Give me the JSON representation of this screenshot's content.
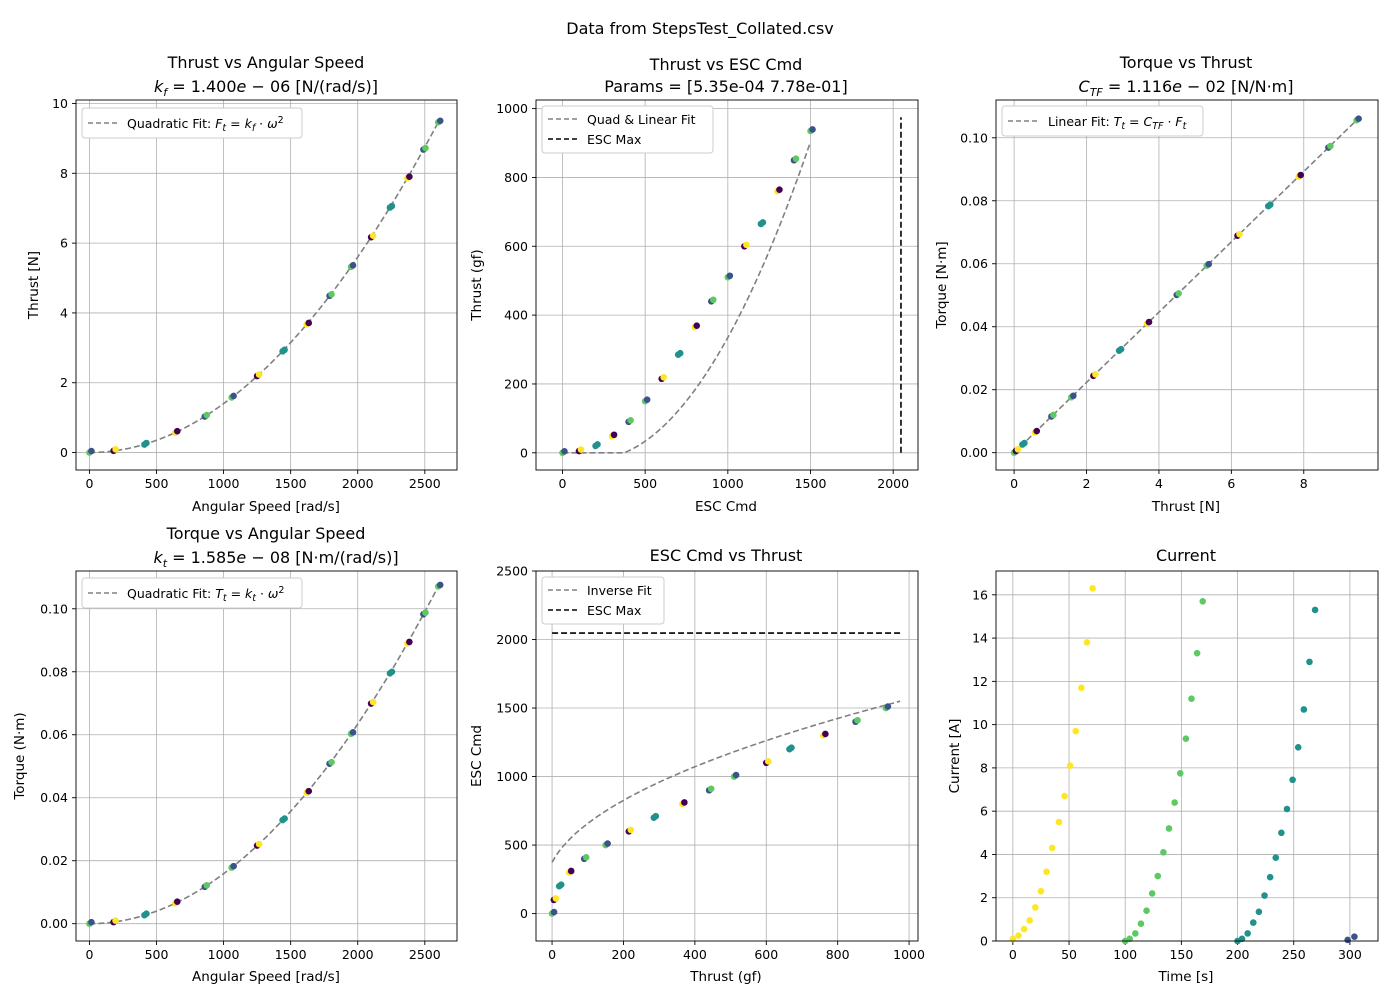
{
  "figure": {
    "suptitle": "Data from StepsTest_Collated.csv",
    "colors": {
      "fit": "#808080",
      "esc_max": "#000000",
      "grid": "#b0b0b0",
      "viridis": [
        "#440154",
        "#3b528b",
        "#21918c",
        "#5ec962",
        "#fde725"
      ]
    }
  },
  "chart_data": [
    {
      "type": "scatter",
      "title_main": "Thrust vs Angular Speed",
      "title_sub": "k_f = 1.400e−06 [N/(rad/s)]",
      "xlabel": "Angular Speed [rad/s]",
      "ylabel": "Thrust [N]",
      "xlim": [
        -100,
        2740
      ],
      "ylim": [
        -0.5,
        10.1
      ],
      "xticks": [
        0,
        500,
        1000,
        1500,
        2000,
        2500
      ],
      "yticks": [
        0,
        2,
        4,
        6,
        8,
        10
      ],
      "grid": true,
      "legend": {
        "location": "upper-left",
        "entries": [
          "Quadratic Fit: F_t = k_f · ω²"
        ]
      },
      "fit": {
        "kind": "quadratic",
        "k": 1.4e-06
      },
      "points": [
        [
          0,
          0
        ],
        [
          180,
          0.05
        ],
        [
          410,
          0.23
        ],
        [
          640,
          0.57
        ],
        [
          860,
          1.03
        ],
        [
          1060,
          1.58
        ],
        [
          1250,
          2.19
        ],
        [
          1440,
          2.9
        ],
        [
          1620,
          3.67
        ],
        [
          1790,
          4.49
        ],
        [
          1950,
          5.32
        ],
        [
          2100,
          6.17
        ],
        [
          2240,
          7.02
        ],
        [
          2370,
          7.86
        ],
        [
          2490,
          8.68
        ],
        [
          2600,
          9.46
        ]
      ]
    },
    {
      "type": "scatter",
      "title_main": "Thrust vs ESC Cmd",
      "title_sub": "Params = [5.35e-04 7.78e-01]",
      "xlabel": "ESC Cmd",
      "ylabel": "Thrust (gf)",
      "xlim": [
        -160,
        2150
      ],
      "ylim": [
        -50,
        1025
      ],
      "xticks": [
        0,
        500,
        1000,
        1500,
        2000
      ],
      "yticks": [
        0,
        200,
        400,
        600,
        800,
        1000
      ],
      "grid": true,
      "legend": {
        "location": "upper-left",
        "entries": [
          "Quad & Linear Fit",
          "ESC Max"
        ]
      },
      "fit": {
        "kind": "quad_linear",
        "a": 0.000535,
        "b": -0.2
      },
      "esc_max": {
        "value": 2047,
        "range": [
          0,
          975
        ]
      },
      "points": [
        [
          0,
          0
        ],
        [
          100,
          5
        ],
        [
          200,
          20
        ],
        [
          300,
          48
        ],
        [
          400,
          90
        ],
        [
          500,
          150
        ],
        [
          600,
          215
        ],
        [
          700,
          285
        ],
        [
          800,
          365
        ],
        [
          900,
          440
        ],
        [
          1000,
          510
        ],
        [
          1100,
          600
        ],
        [
          1200,
          665
        ],
        [
          1300,
          760
        ],
        [
          1400,
          850
        ],
        [
          1500,
          935
        ]
      ]
    },
    {
      "type": "scatter",
      "title_main": "Torque vs Thrust",
      "title_sub": "C_TF = 1.116e−02 [N/N·m]",
      "xlabel": "Thrust [N]",
      "ylabel": "Torque [N·m]",
      "xlim": [
        -0.5,
        10.05
      ],
      "ylim": [
        -0.0055,
        0.112
      ],
      "xticks": [
        0,
        2,
        4,
        6,
        8
      ],
      "yticks": [
        0,
        0.02,
        0.04,
        0.06,
        0.08,
        0.1
      ],
      "ytick_labels": [
        "0.00",
        "0.02",
        "0.04",
        "0.06",
        "0.08",
        "0.10"
      ],
      "grid": true,
      "legend": {
        "location": "upper-left",
        "entries": [
          "Linear Fit: T_t = C_TF · F_t"
        ]
      },
      "fit": {
        "kind": "linear",
        "k": 0.01116
      },
      "points": [
        [
          0,
          0
        ],
        [
          0.05,
          0.0006
        ],
        [
          0.23,
          0.0026
        ],
        [
          0.57,
          0.0064
        ],
        [
          1.03,
          0.0115
        ],
        [
          1.58,
          0.0176
        ],
        [
          2.19,
          0.0244
        ],
        [
          2.9,
          0.0324
        ],
        [
          3.67,
          0.041
        ],
        [
          4.49,
          0.0501
        ],
        [
          5.32,
          0.0594
        ],
        [
          6.17,
          0.0689
        ],
        [
          7.02,
          0.0783
        ],
        [
          7.86,
          0.0877
        ],
        [
          8.68,
          0.0969
        ],
        [
          9.46,
          0.1056
        ]
      ]
    },
    {
      "type": "scatter",
      "title_main": "Torque vs Angular Speed",
      "title_sub": "k_t = 1.585e−08 [N·m/(rad/s)]",
      "xlabel": "Angular Speed [rad/s]",
      "ylabel": "Torque (N·m)",
      "xlim": [
        -100,
        2740
      ],
      "ylim": [
        -0.0055,
        0.112
      ],
      "xticks": [
        0,
        500,
        1000,
        1500,
        2000,
        2500
      ],
      "yticks": [
        0,
        0.02,
        0.04,
        0.06,
        0.08,
        0.1
      ],
      "ytick_labels": [
        "0.00",
        "0.02",
        "0.04",
        "0.06",
        "0.08",
        "0.10"
      ],
      "grid": true,
      "legend": {
        "location": "upper-left",
        "entries": [
          "Quadratic Fit: T_t = k_t · ω²"
        ]
      },
      "fit": {
        "kind": "quadratic",
        "k": 1.585e-08
      },
      "points": [
        [
          0,
          0
        ],
        [
          180,
          0.0005
        ],
        [
          410,
          0.0027
        ],
        [
          640,
          0.0065
        ],
        [
          860,
          0.0117
        ],
        [
          1060,
          0.0178
        ],
        [
          1250,
          0.0248
        ],
        [
          1440,
          0.0329
        ],
        [
          1620,
          0.0416
        ],
        [
          1790,
          0.0508
        ],
        [
          1950,
          0.0603
        ],
        [
          2100,
          0.0699
        ],
        [
          2240,
          0.0795
        ],
        [
          2370,
          0.089
        ],
        [
          2490,
          0.0983
        ],
        [
          2600,
          0.1071
        ]
      ]
    },
    {
      "type": "scatter",
      "title_main": "ESC Cmd vs Thrust",
      "title_sub": "",
      "xlabel": "Thrust (gf)",
      "ylabel": "ESC Cmd",
      "xlim": [
        -45,
        1025
      ],
      "ylim": [
        -200,
        2500
      ],
      "xticks": [
        0,
        200,
        400,
        600,
        800,
        1000
      ],
      "yticks": [
        0,
        500,
        1000,
        1500,
        2000,
        2500
      ],
      "grid": true,
      "legend": {
        "location": "upper-left",
        "entries": [
          "Inverse Fit",
          "ESC Max"
        ]
      },
      "fit": {
        "kind": "inverse",
        "a": 0.000535,
        "b": -0.2
      },
      "esc_max": {
        "value": 2047,
        "range": [
          0,
          975
        ]
      },
      "points": [
        [
          0,
          0
        ],
        [
          5,
          100
        ],
        [
          20,
          200
        ],
        [
          48,
          300
        ],
        [
          90,
          400
        ],
        [
          150,
          500
        ],
        [
          215,
          600
        ],
        [
          285,
          700
        ],
        [
          365,
          800
        ],
        [
          440,
          900
        ],
        [
          510,
          1000
        ],
        [
          600,
          1100
        ],
        [
          665,
          1200
        ],
        [
          760,
          1300
        ],
        [
          850,
          1400
        ],
        [
          935,
          1500
        ]
      ]
    },
    {
      "type": "scatter",
      "title_main": "Current",
      "title_sub": "",
      "xlabel": "Time [s]",
      "ylabel": "Current [A]",
      "xlim": [
        -15,
        325
      ],
      "ylim": [
        0,
        17.1
      ],
      "xticks": [
        0,
        50,
        100,
        150,
        200,
        250,
        300
      ],
      "yticks": [
        0,
        2,
        4,
        6,
        8,
        10,
        12,
        14,
        16
      ],
      "grid": true,
      "points": [
        [
          0,
          0.1
        ],
        [
          5,
          0.25
        ],
        [
          10,
          0.55
        ],
        [
          15,
          0.95
        ],
        [
          20,
          1.55
        ],
        [
          25,
          2.3
        ],
        [
          30,
          3.2
        ],
        [
          35,
          4.3
        ],
        [
          41,
          5.5
        ],
        [
          46,
          6.7
        ],
        [
          51,
          8.1
        ],
        [
          56,
          9.7
        ],
        [
          61,
          11.7
        ],
        [
          66,
          13.8
        ],
        [
          71,
          16.3
        ],
        [
          100,
          0
        ],
        [
          104,
          0.1
        ],
        [
          109,
          0.35
        ],
        [
          114,
          0.8
        ],
        [
          119,
          1.4
        ],
        [
          124,
          2.2
        ],
        [
          129,
          3.0
        ],
        [
          134,
          4.1
        ],
        [
          139,
          5.2
        ],
        [
          144,
          6.4
        ],
        [
          149,
          7.75
        ],
        [
          154,
          9.35
        ],
        [
          159,
          11.2
        ],
        [
          164,
          13.3
        ],
        [
          169,
          15.7
        ],
        [
          200,
          0
        ],
        [
          204,
          0.1
        ],
        [
          209,
          0.35
        ],
        [
          214,
          0.85
        ],
        [
          219,
          1.35
        ],
        [
          224,
          2.1
        ],
        [
          229,
          2.95
        ],
        [
          234,
          3.85
        ],
        [
          239,
          5.0
        ],
        [
          244,
          6.1
        ],
        [
          249,
          7.45
        ],
        [
          254,
          8.95
        ],
        [
          259,
          10.7
        ],
        [
          264,
          12.9
        ],
        [
          269,
          15.3
        ],
        [
          298,
          0.05
        ],
        [
          304,
          0.2
        ]
      ]
    }
  ]
}
